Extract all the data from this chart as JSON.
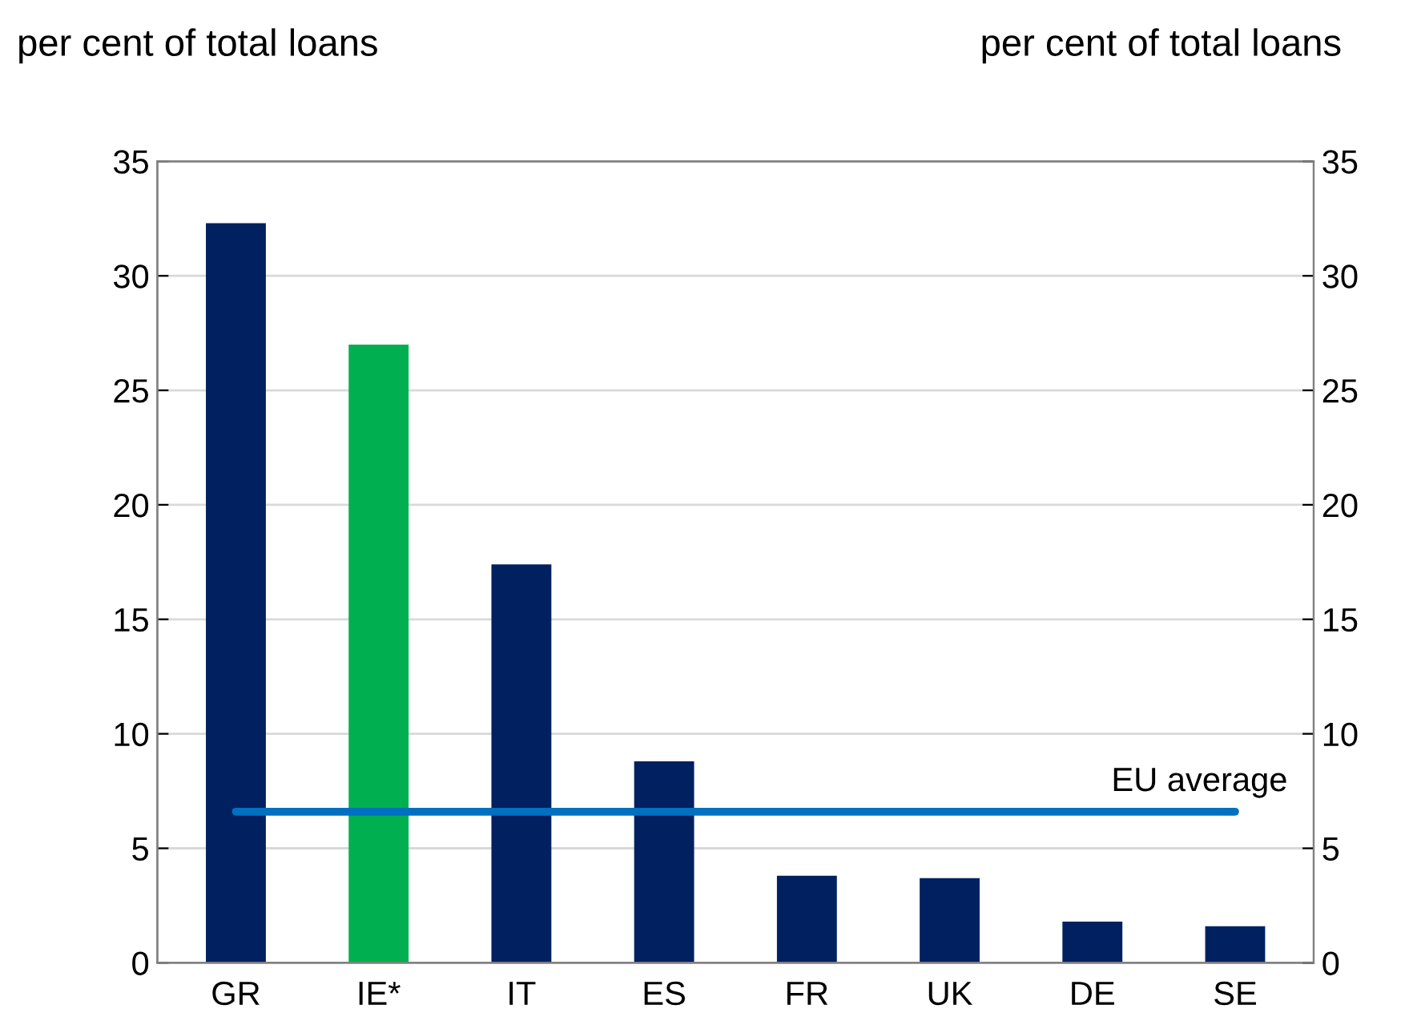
{
  "chart_data": {
    "type": "bar",
    "categories": [
      "GR",
      "IE*",
      "IT",
      "ES",
      "FR",
      "UK",
      "DE",
      "SE"
    ],
    "values": [
      32.3,
      27.0,
      17.4,
      8.8,
      3.8,
      3.7,
      1.8,
      1.6
    ],
    "colors": [
      "#002060",
      "#00b050",
      "#002060",
      "#002060",
      "#002060",
      "#002060",
      "#002060",
      "#002060"
    ],
    "ylabel": "per cent of total loans",
    "y2label": "per cent of total loans",
    "ylim": [
      0,
      35
    ],
    "yticks": [
      0,
      5,
      10,
      15,
      20,
      25,
      30,
      35
    ],
    "y2lim": [
      0,
      35
    ],
    "y2ticks": [
      0,
      5,
      10,
      15,
      20,
      25,
      30,
      35
    ],
    "ref_lines": [
      {
        "axis": "y",
        "value": 6.6,
        "label": "EU average",
        "color": "#0070c0"
      }
    ],
    "grid": "y",
    "legend": false
  }
}
